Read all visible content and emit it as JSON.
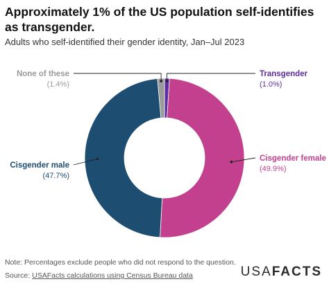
{
  "header": {
    "title": "Approximately 1% of the US population self-identifies as transgender.",
    "subtitle": "Adults who self-identified their gender identity, Jan–Jul 2023"
  },
  "footer": {
    "note": "Note: Percentages exclude people who did not respond to the question.",
    "source_prefix": "Source: ",
    "source_link": "USAFacts calculations using Census Bureau data",
    "brand_part1": "USA",
    "brand_part2": "FACTS"
  },
  "chart_data": {
    "type": "pie",
    "subtype": "donut",
    "title": "Approximately 1% of the US population self-identifies as transgender.",
    "subtitle": "Adults who self-identified their gender identity, Jan–Jul 2023",
    "slices": [
      {
        "name": "Transgender",
        "value": 1.0,
        "label": "(1.0%)",
        "color": "#5b2d9e"
      },
      {
        "name": "Cisgender female",
        "value": 49.9,
        "label": "(49.9%)",
        "color": "#c2408e"
      },
      {
        "name": "Cisgender male",
        "value": 47.7,
        "label": "(47.7%)",
        "color": "#1d4e72"
      },
      {
        "name": "None of these",
        "value": 1.4,
        "label": "(1.4%)",
        "color": "#9a9a9a"
      }
    ]
  }
}
